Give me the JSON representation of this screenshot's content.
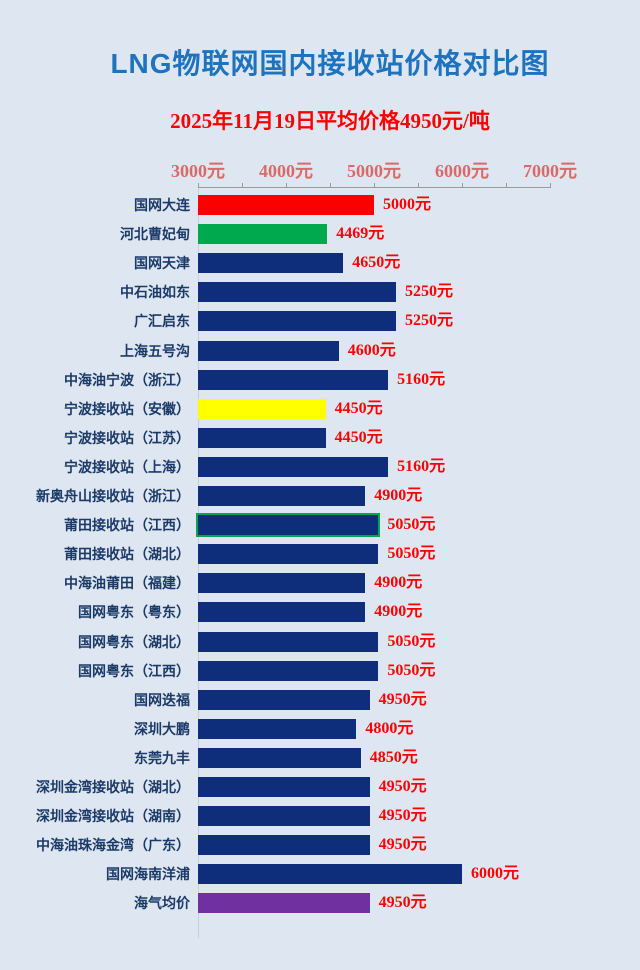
{
  "page": {
    "background_color": "#dde6f1"
  },
  "header": {
    "title": "LNG物联网国内接收站价格对比图",
    "title_color": "#1e73be",
    "subtitle": "2025年11月19日平均价格4950元/吨",
    "subtitle_color": "#ff0000"
  },
  "colors": {
    "navy": "#0e2d7b",
    "red": "#fc0000",
    "green": "#00a84e",
    "yellow": "#ffff00",
    "purple": "#7030a0",
    "value_text": "#ff0000",
    "label_text": "#1b3a68",
    "axis_label_text": "#d96a6a",
    "axis_line": "#9a9a9a",
    "highlight_border": "#00a84e"
  },
  "chart_data": {
    "type": "bar",
    "orientation": "horizontal",
    "title": "LNG物联网国内接收站价格对比图",
    "subtitle": "2025年11月19日平均价格4950元/吨",
    "xlim": [
      3000,
      7000
    ],
    "axis_tick_step": 500,
    "axis_labels": [
      "3000元",
      "4000元",
      "5000元",
      "6000元",
      "7000元"
    ],
    "axis_label_values": [
      3000,
      4000,
      5000,
      6000,
      7000
    ],
    "unit": "元",
    "grid": false,
    "legend": false,
    "rows": [
      {
        "label": "国网大连",
        "value": 5000,
        "value_label": "5000元",
        "color": "red"
      },
      {
        "label": "河北曹妃甸",
        "value": 4469,
        "value_label": "4469元",
        "color": "green"
      },
      {
        "label": "国网天津",
        "value": 4650,
        "value_label": "4650元",
        "color": "navy"
      },
      {
        "label": "中石油如东",
        "value": 5250,
        "value_label": "5250元",
        "color": "navy"
      },
      {
        "label": "广汇启东",
        "value": 5250,
        "value_label": "5250元",
        "color": "navy"
      },
      {
        "label": "上海五号沟",
        "value": 4600,
        "value_label": "4600元",
        "color": "navy"
      },
      {
        "label": "中海油宁波（浙江）",
        "value": 5160,
        "value_label": "5160元",
        "color": "navy"
      },
      {
        "label": "宁波接收站（安徽）",
        "value": 4450,
        "value_label": "4450元",
        "color": "yellow"
      },
      {
        "label": "宁波接收站（江苏）",
        "value": 4450,
        "value_label": "4450元",
        "color": "navy"
      },
      {
        "label": "宁波接收站（上海）",
        "value": 5160,
        "value_label": "5160元",
        "color": "navy"
      },
      {
        "label": "新奥舟山接收站（浙江）",
        "value": 4900,
        "value_label": "4900元",
        "color": "navy"
      },
      {
        "label": "莆田接收站（江西）",
        "value": 5050,
        "value_label": "5050元",
        "color": "navy",
        "highlighted": true
      },
      {
        "label": "莆田接收站（湖北）",
        "value": 5050,
        "value_label": "5050元",
        "color": "navy"
      },
      {
        "label": "中海油莆田（福建）",
        "value": 4900,
        "value_label": "4900元",
        "color": "navy"
      },
      {
        "label": "国网粤东（粤东）",
        "value": 4900,
        "value_label": "4900元",
        "color": "navy"
      },
      {
        "label": "国网粤东（湖北）",
        "value": 5050,
        "value_label": "5050元",
        "color": "navy"
      },
      {
        "label": "国网粤东（江西）",
        "value": 5050,
        "value_label": "5050元",
        "color": "navy"
      },
      {
        "label": "国网迭福",
        "value": 4950,
        "value_label": "4950元",
        "color": "navy"
      },
      {
        "label": "深圳大鹏",
        "value": 4800,
        "value_label": "4800元",
        "color": "navy"
      },
      {
        "label": "东莞九丰",
        "value": 4850,
        "value_label": "4850元",
        "color": "navy"
      },
      {
        "label": "深圳金湾接收站（湖北）",
        "value": 4950,
        "value_label": "4950元",
        "color": "navy"
      },
      {
        "label": "深圳金湾接收站（湖南）",
        "value": 4950,
        "value_label": "4950元",
        "color": "navy"
      },
      {
        "label": "中海油珠海金湾（广东）",
        "value": 4950,
        "value_label": "4950元",
        "color": "navy"
      },
      {
        "label": "国网海南洋浦",
        "value": 6000,
        "value_label": "6000元",
        "color": "navy"
      },
      {
        "label": "海气均价",
        "value": 4950,
        "value_label": "4950元",
        "color": "purple"
      }
    ]
  }
}
